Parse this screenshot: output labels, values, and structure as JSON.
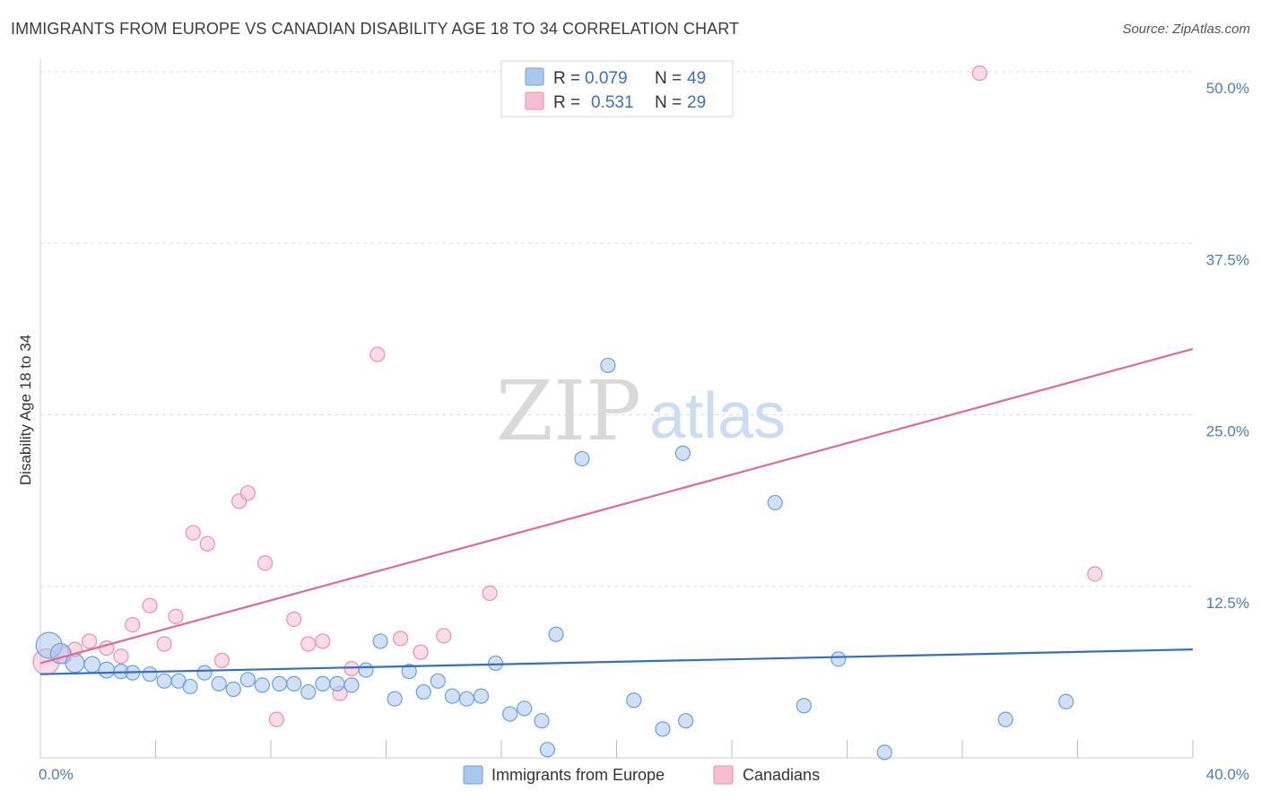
{
  "title": "IMMIGRANTS FROM EUROPE VS CANADIAN DISABILITY AGE 18 TO 34 CORRELATION CHART",
  "source": "Source: ZipAtlas.com",
  "watermark": {
    "zip": "ZIP",
    "atlas": "atlas"
  },
  "colors": {
    "blue_fill": "#a9c8f0",
    "blue_stroke": "#6a9fe0",
    "blue_line": "#2f6fd0",
    "pink_fill": "#f7bdd0",
    "pink_stroke": "#eb8fae",
    "pink_line": "#e46a96",
    "tick_text": "#4a7cc9",
    "grid": "#dddddd"
  },
  "legend": {
    "rows": [
      {
        "r_label": "R =",
        "r_value": "0.079",
        "n_label": "N =",
        "n_value": "49"
      },
      {
        "r_label": "R =",
        "r_value": "0.531",
        "n_label": "N =",
        "n_value": "29"
      }
    ]
  },
  "chart_data": {
    "type": "scatter",
    "title": "IMMIGRANTS FROM EUROPE VS CANADIAN DISABILITY AGE 18 TO 34 CORRELATION CHART",
    "xlabel": "",
    "ylabel": "Disability Age 18 to 34",
    "xlim": [
      0,
      40
    ],
    "ylim": [
      0,
      50
    ],
    "x_tick_labels": [
      "0.0%",
      "40.0%"
    ],
    "y_tick_labels": [
      "12.5%",
      "25.0%",
      "37.5%",
      "50.0%"
    ],
    "y_ticks": [
      12.5,
      25,
      37.5,
      50
    ],
    "grid": true,
    "legend_position": "bottom",
    "series": [
      {
        "name": "Immigrants from Europe",
        "R": 0.079,
        "N": 49,
        "trend": {
          "x0": 0,
          "y0": 6.1,
          "x1": 40,
          "y1": 7.9
        },
        "points": [
          [
            0.3,
            8.2,
            1.8
          ],
          [
            0.7,
            7.6,
            1.4
          ],
          [
            1.2,
            6.9,
            1.3
          ],
          [
            1.8,
            6.8,
            1.1
          ],
          [
            2.3,
            6.4,
            1.1
          ],
          [
            2.8,
            6.3,
            1.0
          ],
          [
            3.2,
            6.2,
            1.0
          ],
          [
            3.8,
            6.1,
            1.0
          ],
          [
            4.3,
            5.6,
            1.0
          ],
          [
            4.8,
            5.6,
            1.0
          ],
          [
            5.2,
            5.2,
            1.0
          ],
          [
            5.7,
            6.2,
            1.0
          ],
          [
            6.2,
            5.4,
            1.0
          ],
          [
            6.7,
            5.0,
            1.0
          ],
          [
            7.2,
            5.7,
            1.0
          ],
          [
            7.7,
            5.3,
            1.0
          ],
          [
            8.3,
            5.4,
            1.0
          ],
          [
            8.8,
            5.4,
            1.0
          ],
          [
            9.3,
            4.8,
            1.0
          ],
          [
            9.8,
            5.4,
            1.0
          ],
          [
            10.3,
            5.4,
            1.0
          ],
          [
            10.8,
            5.3,
            1.0
          ],
          [
            11.3,
            6.4,
            1.0
          ],
          [
            11.8,
            8.5,
            1.0
          ],
          [
            12.3,
            4.3,
            1.0
          ],
          [
            12.8,
            6.3,
            1.0
          ],
          [
            13.3,
            4.8,
            1.0
          ],
          [
            13.8,
            5.6,
            1.0
          ],
          [
            14.3,
            4.5,
            1.0
          ],
          [
            14.8,
            4.3,
            1.0
          ],
          [
            15.3,
            4.5,
            1.0
          ],
          [
            15.8,
            6.9,
            1.0
          ],
          [
            16.3,
            3.2,
            1.0
          ],
          [
            16.8,
            3.6,
            1.0
          ],
          [
            17.4,
            2.7,
            1.0
          ],
          [
            17.9,
            9.0,
            1.0
          ],
          [
            17.6,
            0.6,
            1.0
          ],
          [
            18.8,
            21.8,
            1.0
          ],
          [
            19.7,
            28.6,
            1.0
          ],
          [
            20.6,
            4.2,
            1.0
          ],
          [
            21.6,
            2.1,
            1.0
          ],
          [
            22.4,
            2.7,
            1.0
          ],
          [
            22.3,
            22.2,
            1.0
          ],
          [
            25.5,
            18.6,
            1.0
          ],
          [
            26.5,
            3.8,
            1.0
          ],
          [
            27.7,
            7.2,
            1.0
          ],
          [
            29.3,
            0.4,
            1.0
          ],
          [
            33.5,
            2.8,
            1.0
          ],
          [
            35.6,
            4.1,
            1.0
          ]
        ]
      },
      {
        "name": "Canadians",
        "R": 0.531,
        "N": 29,
        "trend": {
          "x0": 0,
          "y0": 6.9,
          "x1": 40,
          "y1": 29.8
        },
        "points": [
          [
            0.2,
            7.0,
            1.8
          ],
          [
            0.8,
            7.5,
            1.2
          ],
          [
            1.2,
            7.9,
            1.0
          ],
          [
            1.7,
            8.5,
            1.0
          ],
          [
            2.3,
            8.0,
            1.0
          ],
          [
            2.8,
            7.4,
            1.0
          ],
          [
            3.2,
            9.7,
            1.0
          ],
          [
            3.8,
            11.1,
            1.0
          ],
          [
            4.3,
            8.3,
            1.0
          ],
          [
            4.7,
            10.3,
            1.0
          ],
          [
            5.3,
            16.4,
            1.0
          ],
          [
            5.8,
            15.6,
            1.0
          ],
          [
            6.3,
            7.1,
            1.0
          ],
          [
            6.9,
            18.7,
            1.0
          ],
          [
            7.2,
            19.3,
            1.0
          ],
          [
            7.8,
            14.2,
            1.0
          ],
          [
            8.2,
            2.8,
            1.0
          ],
          [
            8.8,
            10.1,
            1.0
          ],
          [
            9.3,
            8.3,
            1.0
          ],
          [
            9.8,
            8.5,
            1.0
          ],
          [
            10.4,
            4.7,
            1.0
          ],
          [
            10.8,
            6.5,
            1.0
          ],
          [
            11.7,
            29.4,
            1.0
          ],
          [
            12.5,
            8.7,
            1.0
          ],
          [
            13.2,
            7.7,
            1.0
          ],
          [
            14.0,
            8.9,
            1.0
          ],
          [
            15.6,
            12.0,
            1.0
          ],
          [
            32.6,
            49.9,
            1.0
          ],
          [
            36.6,
            13.4,
            1.0
          ]
        ]
      }
    ]
  }
}
